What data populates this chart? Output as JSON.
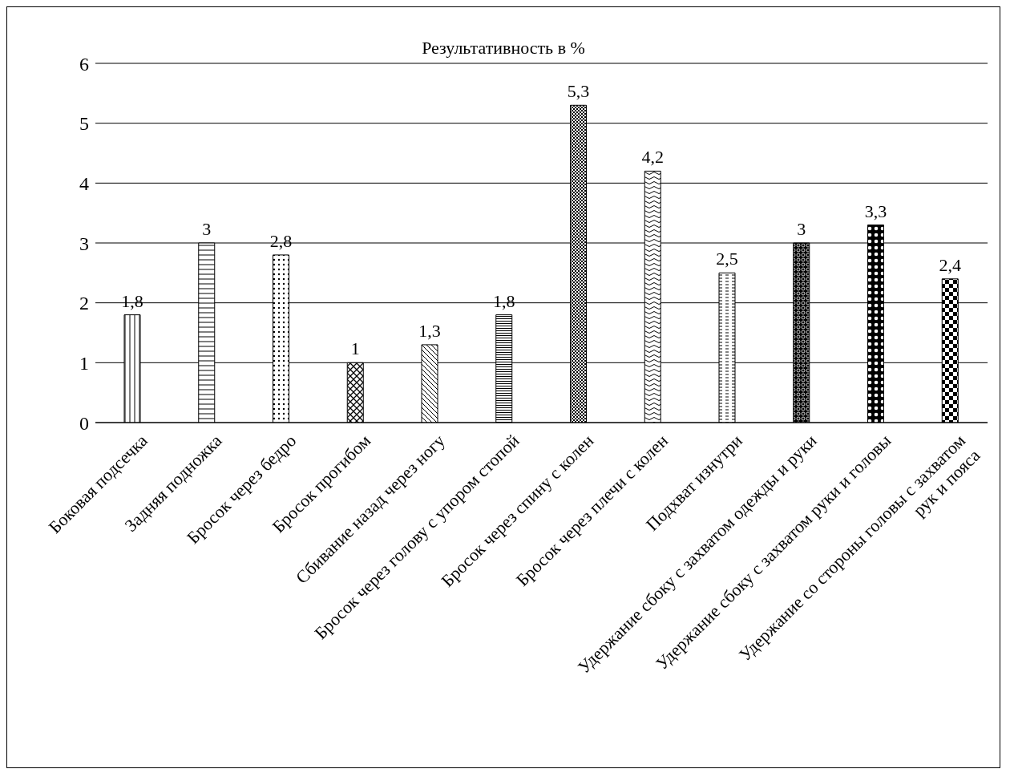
{
  "chart_data": {
    "type": "bar",
    "title": "Результативность в %",
    "categories": [
      "Боковая подсечка",
      "Задняя подножка",
      "Бросок через бедро",
      "Бросок прогибом",
      "Сбивание назад через ногу",
      "Бросок через голову с упором стопой",
      "Бросок через спину с колен",
      "Бросок через плечи с колен",
      "Подхват изнутри",
      "Удержание сбоку с захватом одежды и руки",
      "Удержание сбоку с захватом руки и головы",
      "Удержание со стороны головы с захватом рук и пояса"
    ],
    "values": [
      1.8,
      3,
      2.8,
      1,
      1.3,
      1.8,
      5.3,
      4.2,
      2.5,
      3,
      3.3,
      2.4
    ],
    "color": "#000000",
    "ylim": [
      0,
      6
    ],
    "yticks": [
      0,
      1,
      2,
      3,
      4,
      5,
      6
    ],
    "grid": "y",
    "value_labels": [
      "1,8",
      "3",
      "2,8",
      "1",
      "1,3",
      "1,8",
      "5,3",
      "4,2",
      "2,5",
      "3",
      "3,3",
      "2,4"
    ]
  }
}
